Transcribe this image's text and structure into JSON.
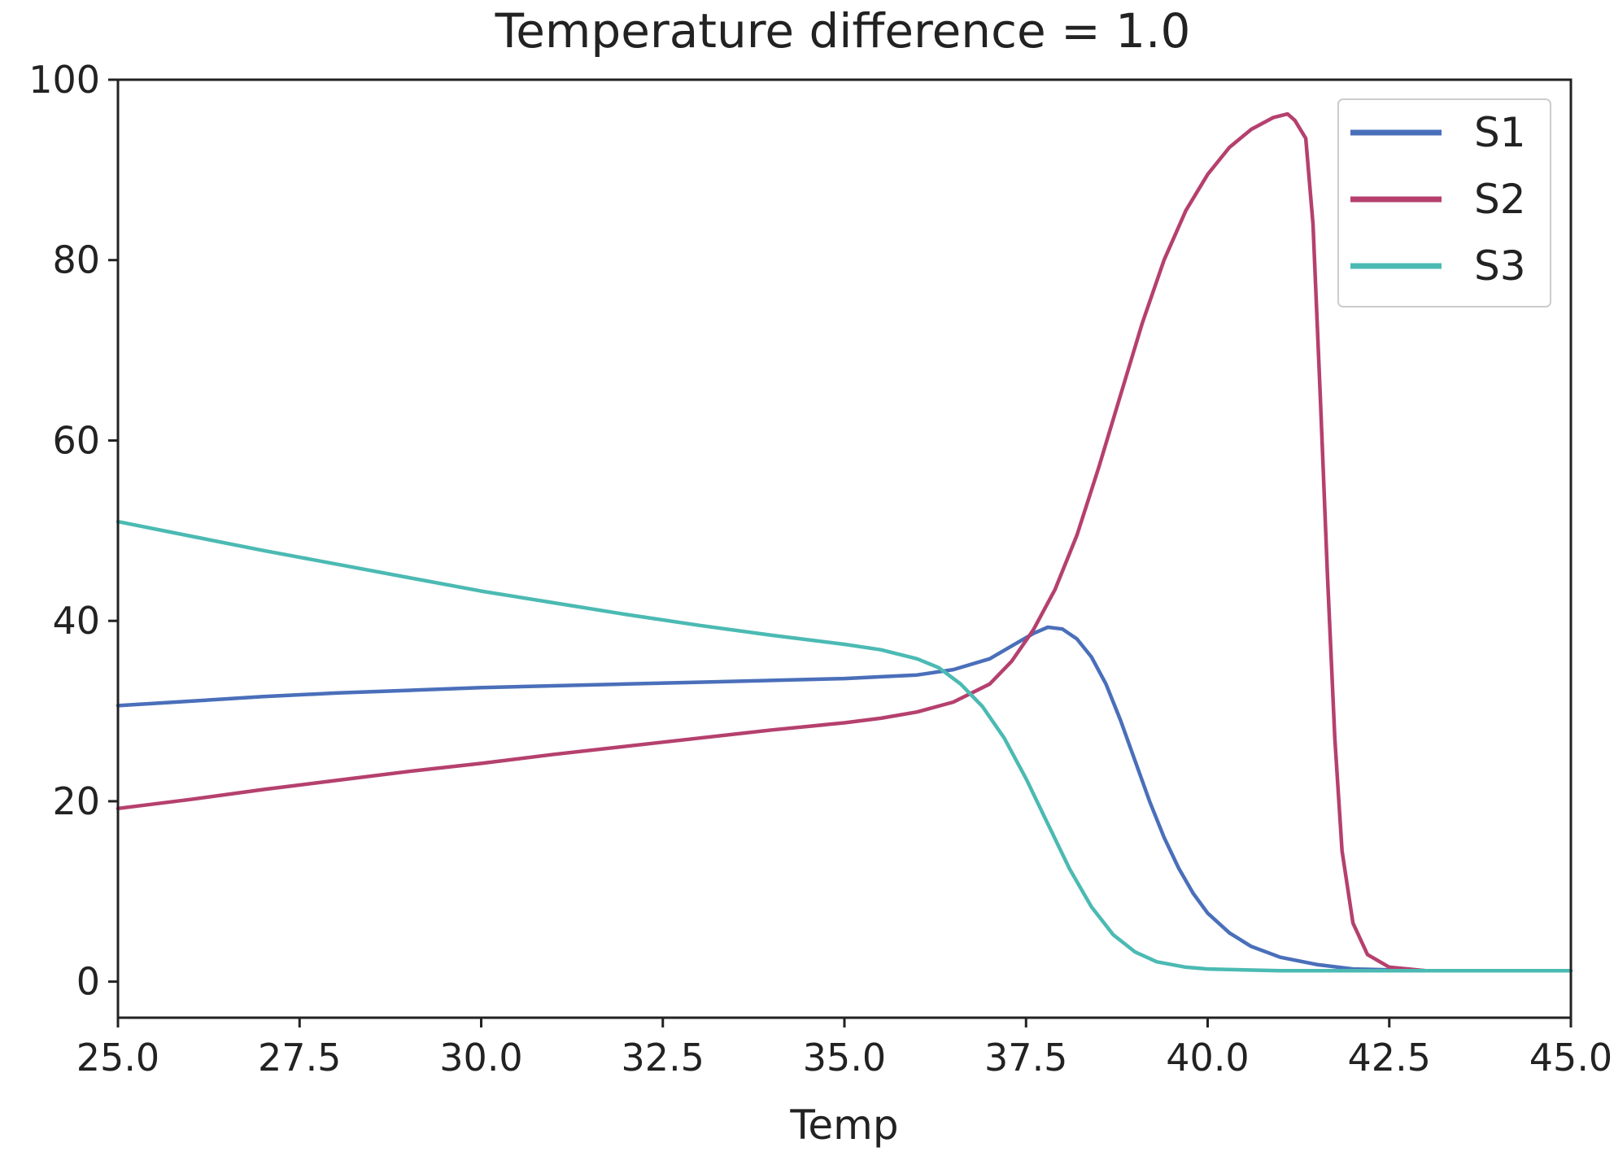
{
  "chart_data": {
    "type": "line",
    "title": "Temperature difference = 1.0",
    "xlabel": "Temp",
    "ylabel": "",
    "xlim": [
      25.0,
      45.0
    ],
    "ylim": [
      -4,
      100
    ],
    "x_ticks": [
      "25.0",
      "27.5",
      "30.0",
      "32.5",
      "35.0",
      "37.5",
      "40.0",
      "42.5",
      "45.0"
    ],
    "y_ticks": [
      "0",
      "20",
      "40",
      "60",
      "80",
      "100"
    ],
    "x_tick_values": [
      25.0,
      27.5,
      30.0,
      32.5,
      35.0,
      37.5,
      40.0,
      42.5,
      45.0
    ],
    "y_tick_values": [
      0,
      20,
      40,
      60,
      80,
      100
    ],
    "grid": false,
    "legend_position": "top-right",
    "series": [
      {
        "name": "S1",
        "color": "#4a6fba",
        "points": [
          [
            25.0,
            30.6
          ],
          [
            26.0,
            31.1
          ],
          [
            27.0,
            31.6
          ],
          [
            28.0,
            32.0
          ],
          [
            29.0,
            32.3
          ],
          [
            30.0,
            32.6
          ],
          [
            31.0,
            32.8
          ],
          [
            32.0,
            33.0
          ],
          [
            33.0,
            33.2
          ],
          [
            34.0,
            33.4
          ],
          [
            35.0,
            33.6
          ],
          [
            35.5,
            33.8
          ],
          [
            36.0,
            34.0
          ],
          [
            36.5,
            34.6
          ],
          [
            37.0,
            35.8
          ],
          [
            37.3,
            37.2
          ],
          [
            37.6,
            38.6
          ],
          [
            37.8,
            39.3
          ],
          [
            38.0,
            39.1
          ],
          [
            38.2,
            38.0
          ],
          [
            38.4,
            36.0
          ],
          [
            38.6,
            33.0
          ],
          [
            38.8,
            29.0
          ],
          [
            39.0,
            24.5
          ],
          [
            39.2,
            20.0
          ],
          [
            39.4,
            16.0
          ],
          [
            39.6,
            12.6
          ],
          [
            39.8,
            9.8
          ],
          [
            40.0,
            7.6
          ],
          [
            40.3,
            5.4
          ],
          [
            40.6,
            3.9
          ],
          [
            41.0,
            2.7
          ],
          [
            41.5,
            1.9
          ],
          [
            42.0,
            1.4
          ],
          [
            43.0,
            1.2
          ],
          [
            44.0,
            1.2
          ],
          [
            45.0,
            1.2
          ]
        ]
      },
      {
        "name": "S2",
        "color": "#b5406e",
        "points": [
          [
            25.0,
            19.2
          ],
          [
            26.0,
            20.2
          ],
          [
            27.0,
            21.3
          ],
          [
            28.0,
            22.3
          ],
          [
            29.0,
            23.3
          ],
          [
            30.0,
            24.2
          ],
          [
            31.0,
            25.2
          ],
          [
            32.0,
            26.1
          ],
          [
            33.0,
            27.0
          ],
          [
            34.0,
            27.9
          ],
          [
            35.0,
            28.7
          ],
          [
            35.5,
            29.2
          ],
          [
            36.0,
            29.9
          ],
          [
            36.5,
            31.0
          ],
          [
            37.0,
            33.0
          ],
          [
            37.3,
            35.5
          ],
          [
            37.6,
            39.0
          ],
          [
            37.9,
            43.5
          ],
          [
            38.2,
            49.5
          ],
          [
            38.5,
            57.0
          ],
          [
            38.8,
            65.0
          ],
          [
            39.1,
            73.0
          ],
          [
            39.4,
            80.0
          ],
          [
            39.7,
            85.5
          ],
          [
            40.0,
            89.5
          ],
          [
            40.3,
            92.5
          ],
          [
            40.6,
            94.5
          ],
          [
            40.9,
            95.8
          ],
          [
            41.1,
            96.2
          ],
          [
            41.2,
            95.5
          ],
          [
            41.35,
            93.5
          ],
          [
            41.45,
            84.0
          ],
          [
            41.55,
            65.0
          ],
          [
            41.65,
            45.0
          ],
          [
            41.75,
            27.0
          ],
          [
            41.85,
            14.5
          ],
          [
            42.0,
            6.5
          ],
          [
            42.2,
            3.0
          ],
          [
            42.5,
            1.6
          ],
          [
            43.0,
            1.2
          ],
          [
            44.0,
            1.2
          ],
          [
            45.0,
            1.2
          ]
        ]
      },
      {
        "name": "S3",
        "color": "#4bbab3",
        "points": [
          [
            25.0,
            51.0
          ],
          [
            26.0,
            49.4
          ],
          [
            27.0,
            47.8
          ],
          [
            28.0,
            46.3
          ],
          [
            29.0,
            44.8
          ],
          [
            30.0,
            43.3
          ],
          [
            31.0,
            42.0
          ],
          [
            32.0,
            40.7
          ],
          [
            33.0,
            39.5
          ],
          [
            34.0,
            38.4
          ],
          [
            35.0,
            37.4
          ],
          [
            35.5,
            36.8
          ],
          [
            36.0,
            35.8
          ],
          [
            36.3,
            34.8
          ],
          [
            36.6,
            33.0
          ],
          [
            36.9,
            30.5
          ],
          [
            37.2,
            27.0
          ],
          [
            37.5,
            22.5
          ],
          [
            37.8,
            17.5
          ],
          [
            38.1,
            12.5
          ],
          [
            38.4,
            8.3
          ],
          [
            38.7,
            5.2
          ],
          [
            39.0,
            3.3
          ],
          [
            39.3,
            2.2
          ],
          [
            39.7,
            1.6
          ],
          [
            40.0,
            1.4
          ],
          [
            41.0,
            1.2
          ],
          [
            42.0,
            1.2
          ],
          [
            43.0,
            1.2
          ],
          [
            44.0,
            1.2
          ],
          [
            45.0,
            1.2
          ]
        ]
      }
    ]
  }
}
